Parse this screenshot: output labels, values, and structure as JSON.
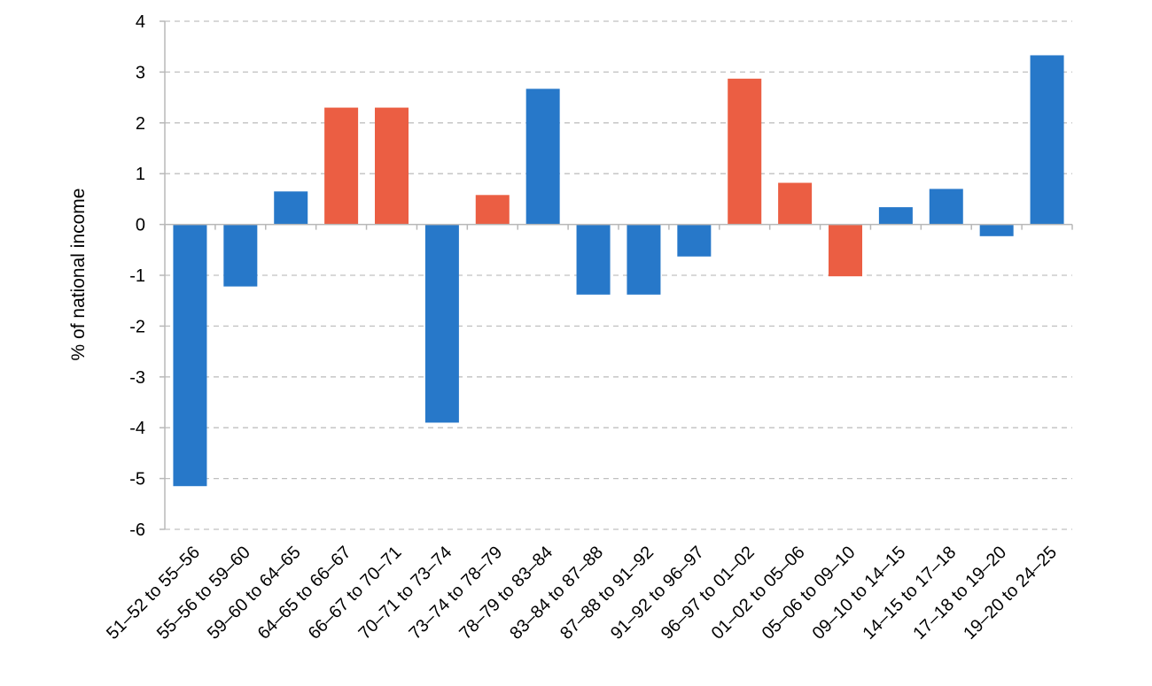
{
  "chart_data": {
    "type": "bar",
    "title": "",
    "xlabel": "",
    "ylabel": "% of national income",
    "ylim": [
      -6,
      4
    ],
    "yticks": [
      4,
      3,
      2,
      1,
      0,
      -1,
      -2,
      -3,
      -4,
      -5,
      -6
    ],
    "grid": true,
    "categories": [
      "51–52 to 55–56",
      "55–56 to 59–60",
      "59–60 to 64–65",
      "64–65 to 66–67",
      "66–67 to 70–71",
      "70–71 to 73–74",
      "73–74 to 78–79",
      "78–79 to 83–84",
      "83–84 to 87–88",
      "87–88 to 91–92",
      "91–92 to 96–97",
      "96–97 to 01–02",
      "01–02 to 05–06",
      "05–06 to 09–10",
      "09–10 to 14–15",
      "14–15 to 17–18",
      "17–18 to 19–20",
      "19–20 to 24–25"
    ],
    "values": [
      -5.15,
      -1.22,
      0.65,
      2.3,
      2.3,
      -3.9,
      0.58,
      2.67,
      -1.38,
      -1.38,
      -0.63,
      2.87,
      0.82,
      -1.02,
      0.34,
      0.7,
      -0.23,
      3.33
    ],
    "colors": [
      "#2778c9",
      "#2778c9",
      "#2778c9",
      "#eb5e43",
      "#eb5e43",
      "#2778c9",
      "#eb5e43",
      "#2778c9",
      "#2778c9",
      "#2778c9",
      "#2778c9",
      "#eb5e43",
      "#eb5e43",
      "#eb5e43",
      "#2778c9",
      "#2778c9",
      "#2778c9",
      "#2778c9"
    ],
    "palette": {
      "blue": "#2778c9",
      "red": "#eb5e43",
      "grid": "#c0c0c0",
      "axis": "#b8b8b8"
    }
  }
}
